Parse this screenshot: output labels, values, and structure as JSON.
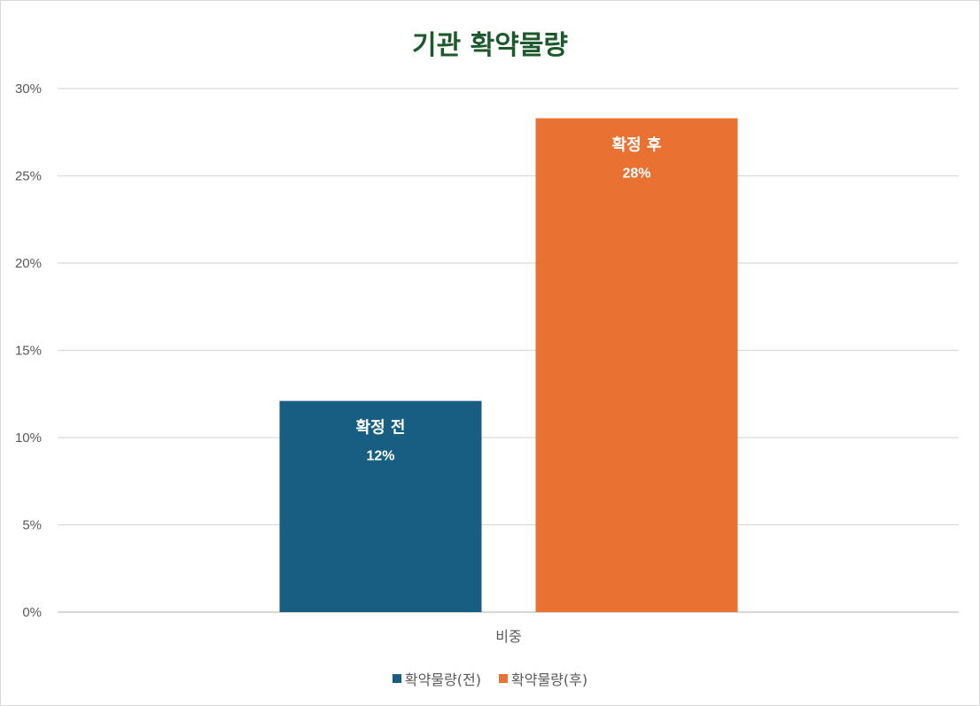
{
  "chart_data": {
    "type": "bar",
    "title": "기관 확약물량",
    "categories": [
      "비중"
    ],
    "series": [
      {
        "name": "확약물량(전)",
        "label": "확정 전",
        "value_label": "12%",
        "values": [
          12.1
        ],
        "color": "#175e82"
      },
      {
        "name": "확약물량(후)",
        "label": "확정 후",
        "value_label": "28%",
        "values": [
          28.3
        ],
        "color": "#e97132"
      }
    ],
    "ylim": [
      0,
      30
    ],
    "yticks": [
      0,
      5,
      10,
      15,
      20,
      25,
      30
    ],
    "ytick_labels": [
      "0%",
      "5%",
      "10%",
      "15%",
      "20%",
      "25%",
      "30%"
    ],
    "grid": true,
    "legend": "bottom"
  }
}
